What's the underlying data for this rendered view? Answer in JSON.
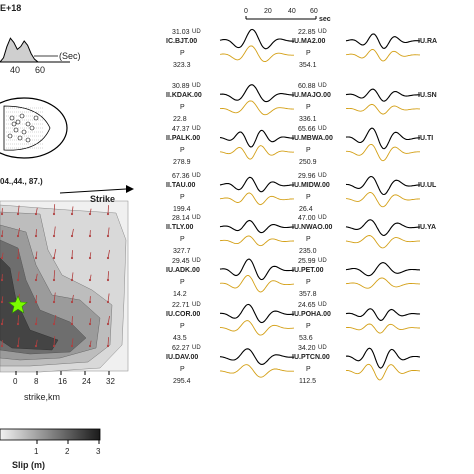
{
  "stf": {
    "moment_label": "E+18",
    "ticks": [
      "40",
      "60"
    ],
    "unit": "(Sec)",
    "profile": [
      0,
      0.15,
      0.55,
      0.85,
      0.7,
      0.45,
      0.55,
      0.75,
      0.6,
      0.3,
      0.1,
      0
    ]
  },
  "mechanism": {
    "label": "04.,44., 87.)"
  },
  "slip_map": {
    "strike_arrow_label": "Strike",
    "x_ticks": [
      "0",
      "8",
      "16",
      "24",
      "32"
    ],
    "x_label": "strike,km",
    "colorbar_ticks": [
      "1",
      "2",
      "3"
    ],
    "colorbar_label": "Slip (m)",
    "colors": {
      "max": "#1a1a1a",
      "min": "#f2f2f2",
      "epicenter": "#7CFC00",
      "vectors": "#b04040"
    }
  },
  "time_scale": {
    "ticks": [
      "0",
      "20",
      "40",
      "60"
    ],
    "unit": "sec"
  },
  "colors": {
    "observed": "#000000",
    "synthetic": "#d4a017"
  },
  "stations": [
    {
      "col": 0,
      "row": 0,
      "code": "IC.BJT.00",
      "amp": "31.03",
      "comp": "UD",
      "phase": "P",
      "az": "323.3"
    },
    {
      "col": 0,
      "row": 1,
      "code": "II.KDAK.00",
      "amp": "30.89",
      "comp": "UD",
      "phase": "P",
      "az": "22.8"
    },
    {
      "col": 0,
      "row": 2,
      "code": "II.PALK.00",
      "amp": "47.37",
      "comp": "UD",
      "phase": "P",
      "az": "278.9"
    },
    {
      "col": 0,
      "row": 3,
      "code": "II.TAU.00",
      "amp": "67.36",
      "comp": "UD",
      "phase": "P",
      "az": "199.4"
    },
    {
      "col": 0,
      "row": 4,
      "code": "II.TLY.00",
      "amp": "28.14",
      "comp": "UD",
      "phase": "P",
      "az": "327.7"
    },
    {
      "col": 0,
      "row": 5,
      "code": "IU.ADK.00",
      "amp": "29.45",
      "comp": "UD",
      "phase": "P",
      "az": "14.2"
    },
    {
      "col": 0,
      "row": 6,
      "code": "IU.COR.00",
      "amp": "22.71",
      "comp": "UD",
      "phase": "P",
      "az": "43.5"
    },
    {
      "col": 0,
      "row": 7,
      "code": "IU.DAV.00",
      "amp": "62.27",
      "comp": "UD",
      "phase": "P",
      "az": "295.4"
    },
    {
      "col": 1,
      "row": 0,
      "code": "IU.MA2.00",
      "amp": "22.85",
      "comp": "UD",
      "phase": "P",
      "az": "354.1"
    },
    {
      "col": 1,
      "row": 1,
      "code": "IU.MAJO.00",
      "amp": "60.88",
      "comp": "UD",
      "phase": "P",
      "az": "336.1"
    },
    {
      "col": 1,
      "row": 2,
      "code": "IU.MBWA.00",
      "amp": "65.66",
      "comp": "UD",
      "phase": "P",
      "az": "250.9"
    },
    {
      "col": 1,
      "row": 3,
      "code": "IU.MIDW.00",
      "amp": "29.96",
      "comp": "UD",
      "phase": "P",
      "az": "26.4"
    },
    {
      "col": 1,
      "row": 4,
      "code": "IU.NWAO.00",
      "amp": "47.00",
      "comp": "UD",
      "phase": "P",
      "az": "235.0"
    },
    {
      "col": 1,
      "row": 5,
      "code": "IU.PET.00",
      "amp": "25.99",
      "comp": "UD",
      "phase": "P",
      "az": "357.8"
    },
    {
      "col": 1,
      "row": 6,
      "code": "IU.POHA.00",
      "amp": "24.65",
      "comp": "UD",
      "phase": "P",
      "az": "53.6"
    },
    {
      "col": 1,
      "row": 7,
      "code": "IU.PTCN.00",
      "amp": "34.20",
      "comp": "UD",
      "phase": "P",
      "az": "112.5"
    },
    {
      "col": 2,
      "row": 0,
      "code": "IU.RA",
      "amp": "",
      "comp": "",
      "phase": "",
      "az": ""
    },
    {
      "col": 2,
      "row": 1,
      "code": "IU.SN",
      "amp": "",
      "comp": "",
      "phase": "",
      "az": ""
    },
    {
      "col": 2,
      "row": 2,
      "code": "IU.TI",
      "amp": "",
      "comp": "",
      "phase": "",
      "az": ""
    },
    {
      "col": 2,
      "row": 3,
      "code": "IU.UL",
      "amp": "",
      "comp": "",
      "phase": "",
      "az": ""
    },
    {
      "col": 2,
      "row": 4,
      "code": "IU.YA",
      "amp": "",
      "comp": "",
      "phase": "",
      "az": ""
    }
  ]
}
